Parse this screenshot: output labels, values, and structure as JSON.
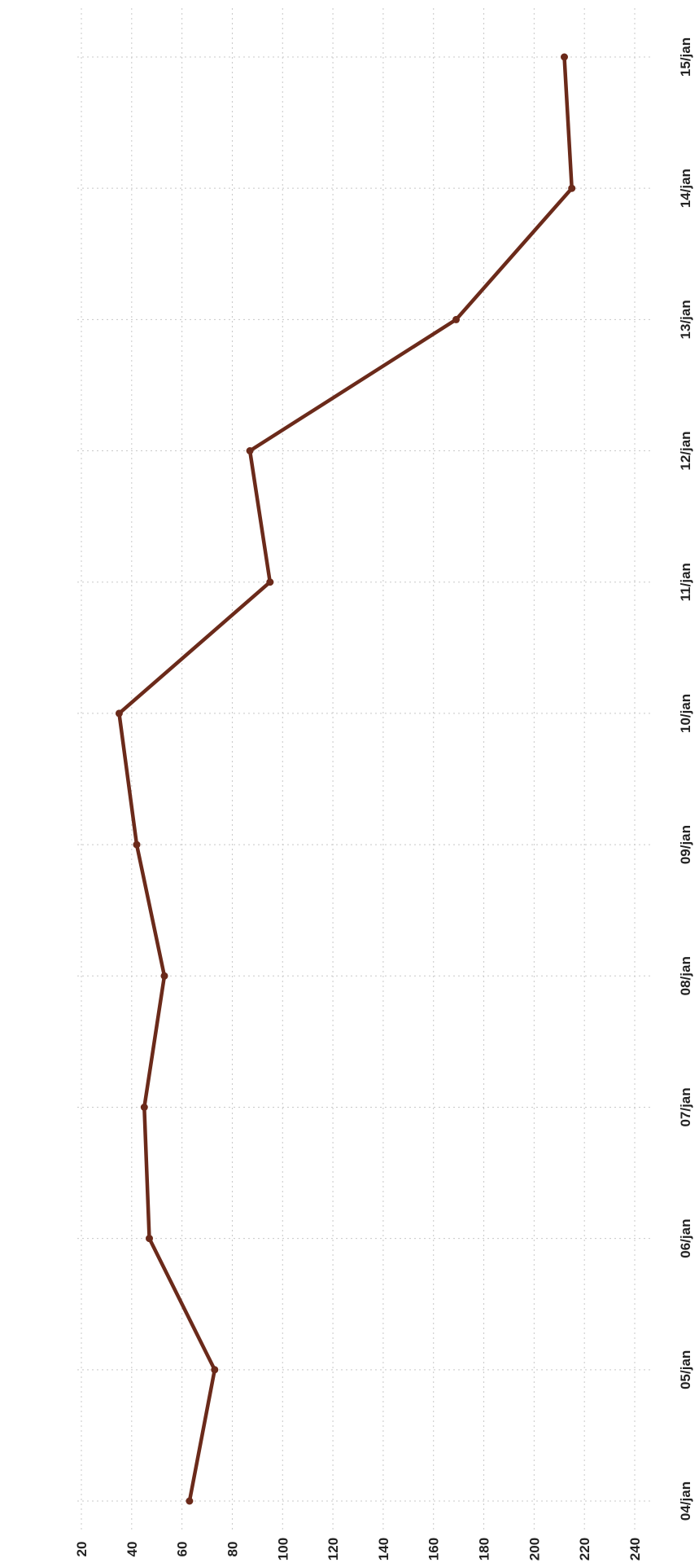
{
  "chart_data": {
    "type": "line",
    "orientation": "rotated-90-ccw",
    "x": [
      "04/jan",
      "05/jan",
      "06/jan",
      "07/jan",
      "08/jan",
      "09/jan",
      "10/jan",
      "11/jan",
      "12/jan",
      "13/jan",
      "14/jan",
      "15/jan"
    ],
    "series": [
      {
        "values": [
          63,
          73,
          47,
          45,
          53,
          42,
          35,
          95,
          87,
          169,
          215,
          212
        ],
        "color": "#6b2a1a"
      }
    ],
    "y_ticks": [
      20,
      40,
      60,
      80,
      100,
      120,
      140,
      160,
      180,
      200,
      220,
      240
    ],
    "ylim": [
      20,
      240
    ],
    "grid": true,
    "legend": "none"
  }
}
